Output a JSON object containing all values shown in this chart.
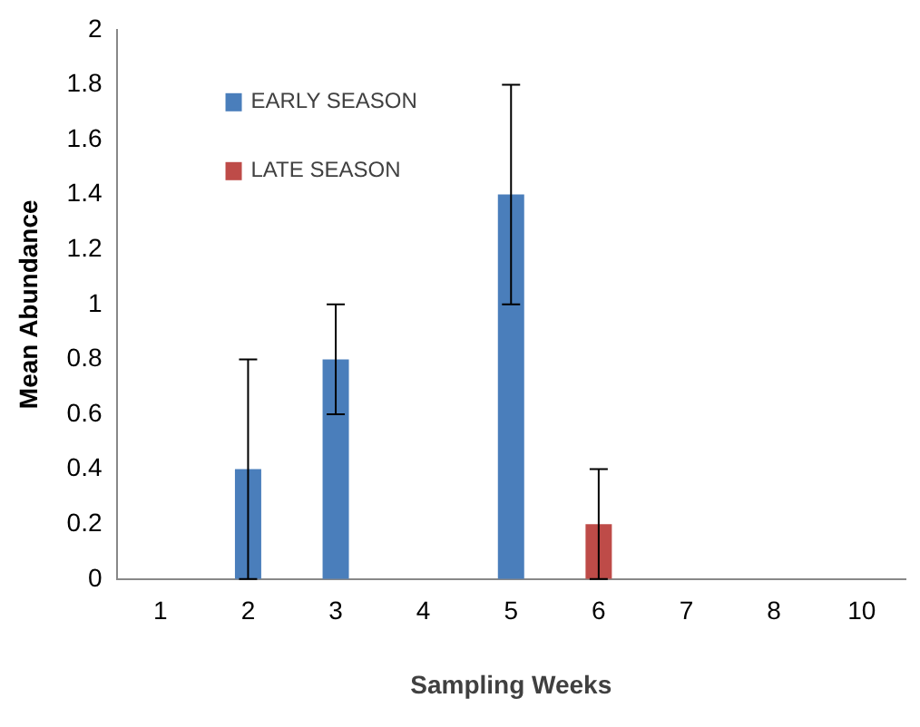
{
  "chart_data": {
    "type": "bar",
    "xlabel": "Sampling Weeks",
    "ylabel": "Mean Abundance",
    "categories": [
      "1",
      "2",
      "3",
      "4",
      "5",
      "6",
      "7",
      "8",
      "10"
    ],
    "series": [
      {
        "name": "EARLY SEASON",
        "color": "#4a7ebb",
        "values": [
          null,
          0.4,
          0.8,
          null,
          1.4,
          null,
          null,
          null,
          null
        ],
        "errors": [
          null,
          0.4,
          0.2,
          null,
          0.4,
          null,
          null,
          null,
          null
        ]
      },
      {
        "name": "LATE SEASON",
        "color": "#be4b48",
        "values": [
          null,
          null,
          null,
          null,
          null,
          0.2,
          null,
          null,
          null
        ],
        "errors": [
          null,
          null,
          null,
          null,
          null,
          0.2,
          null,
          null,
          null
        ]
      }
    ],
    "ylim": [
      0,
      2
    ],
    "yticks": [
      0,
      0.2,
      0.4,
      0.6,
      0.8,
      1,
      1.2,
      1.4,
      1.6,
      1.8,
      2
    ],
    "grid": false,
    "legend": "top left"
  }
}
